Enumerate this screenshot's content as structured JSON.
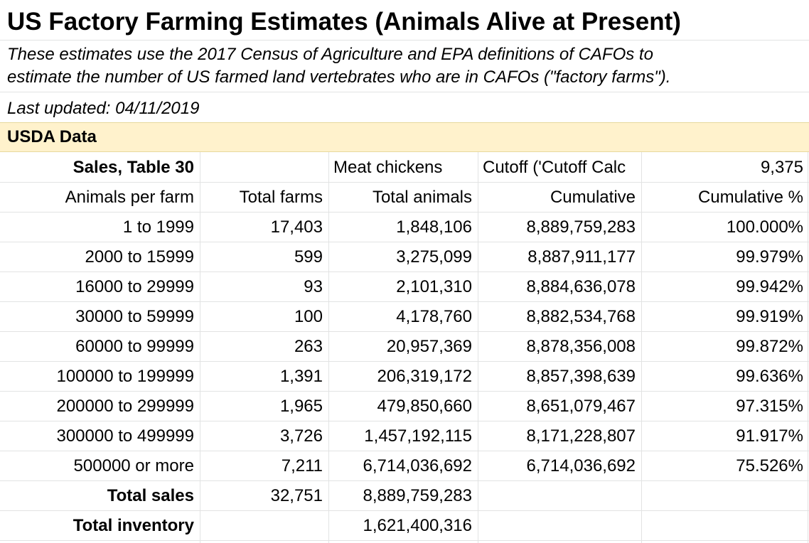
{
  "title": "US Factory Farming Estimates (Animals Alive at Present)",
  "description_line1": "These estimates use the 2017 Census of Agriculture and EPA definitions of CAFOs to",
  "description_line2": "estimate the number of US farmed land vertebrates who are in CAFOs (\"factory farms\").",
  "last_updated": "Last updated: 04/11/2019",
  "section_header": "USDA Data",
  "header_row": {
    "label": "Sales, Table 30",
    "farms": "",
    "animals": "Meat chickens",
    "cutoff": "Cutoff ('Cutoff Calc",
    "cutoff_value": "9,375"
  },
  "column_headers": {
    "label": "Animals per farm",
    "farms": "Total farms",
    "animals": "Total animals",
    "cumulative": "Cumulative",
    "cumulative_pct": "Cumulative %"
  },
  "rows": [
    {
      "label": "1 to 1999",
      "farms": "17,403",
      "animals": "1,848,106",
      "cumulative": "8,889,759,283",
      "cumulative_pct": "100.000%"
    },
    {
      "label": "2000 to 15999",
      "farms": "599",
      "animals": "3,275,099",
      "cumulative": "8,887,911,177",
      "cumulative_pct": "99.979%"
    },
    {
      "label": "16000 to 29999",
      "farms": "93",
      "animals": "2,101,310",
      "cumulative": "8,884,636,078",
      "cumulative_pct": "99.942%"
    },
    {
      "label": "30000 to 59999",
      "farms": "100",
      "animals": "4,178,760",
      "cumulative": "8,882,534,768",
      "cumulative_pct": "99.919%"
    },
    {
      "label": "60000 to 99999",
      "farms": "263",
      "animals": "20,957,369",
      "cumulative": "8,878,356,008",
      "cumulative_pct": "99.872%"
    },
    {
      "label": "100000 to 199999",
      "farms": "1,391",
      "animals": "206,319,172",
      "cumulative": "8,857,398,639",
      "cumulative_pct": "99.636%"
    },
    {
      "label": "200000 to 299999",
      "farms": "1,965",
      "animals": "479,850,660",
      "cumulative": "8,651,079,467",
      "cumulative_pct": "97.315%"
    },
    {
      "label": "300000 to 499999",
      "farms": "3,726",
      "animals": "1,457,192,115",
      "cumulative": "8,171,228,807",
      "cumulative_pct": "91.917%"
    },
    {
      "label": "500000 or more",
      "farms": "7,211",
      "animals": "6,714,036,692",
      "cumulative": "6,714,036,692",
      "cumulative_pct": "75.526%"
    }
  ],
  "total_sales": {
    "label": "Total sales",
    "farms": "32,751",
    "animals": "8,889,759,283"
  },
  "total_inventory": {
    "label": "Total inventory",
    "animals": "1,621,400,316"
  },
  "colors": {
    "section_fill": "#fff2cc",
    "gridline": "#e2e3e3"
  }
}
